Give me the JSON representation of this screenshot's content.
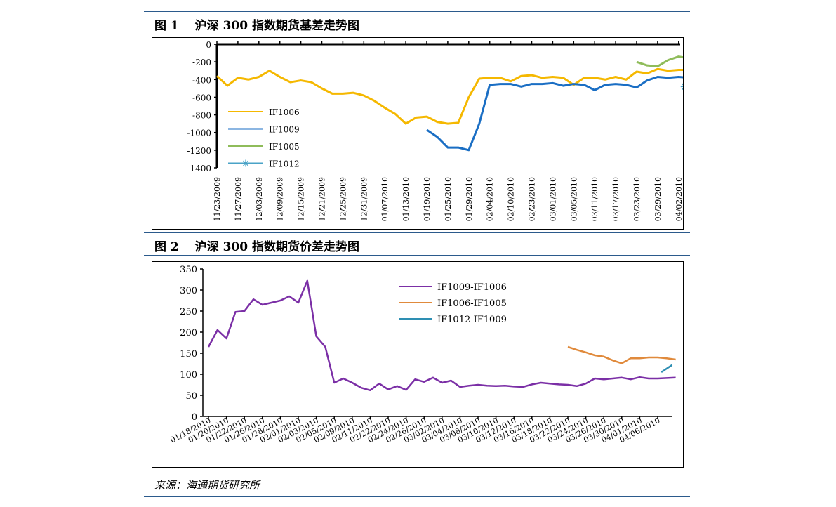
{
  "figure1": {
    "title": "图 1　 沪深 300 指数期货基差走势图"
  },
  "figure2": {
    "title": "图 2　 沪深 300 指数期货价差走势图"
  },
  "source": "来源：海通期货研究所",
  "chart_data": [
    {
      "type": "line",
      "title": "",
      "xlabel": "",
      "ylabel": "",
      "ylim": [
        -1400,
        0
      ],
      "yticks": [
        "0",
        "-200",
        "-400",
        "-600",
        "-800",
        "-1000",
        "-1200",
        "-1400"
      ],
      "x_tick_labels": [
        "11/23/2009",
        "11/27/2009",
        "12/03/2009",
        "12/09/2009",
        "12/15/2009",
        "12/21/2009",
        "12/25/2009",
        "12/31/2009",
        "01/07/2010",
        "01/13/2010",
        "01/19/2010",
        "01/25/2010",
        "01/29/2010",
        "02/04/2010",
        "02/10/2010",
        "02/23/2010",
        "03/01/2010",
        "03/05/2010",
        "03/11/2010",
        "03/17/2010",
        "03/23/2010",
        "03/29/2010",
        "04/02/2010"
      ],
      "grid": false,
      "legend_position": "bottom-left",
      "series": [
        {
          "name": "IF1006",
          "color": "#f5b800",
          "marker": "none",
          "x": [
            0,
            0.5,
            1,
            1.5,
            2,
            2.5,
            3,
            3.5,
            4,
            4.5,
            5,
            5.5,
            6,
            6.5,
            7,
            7.5,
            8,
            8.5,
            9,
            9.5,
            10,
            10.5,
            11,
            11.5,
            12,
            12.5,
            13,
            13.5,
            14,
            14.5,
            15,
            15.5,
            16,
            16.5,
            17,
            17.5,
            18,
            18.5,
            19,
            19.5,
            20,
            20.5,
            21,
            21.5,
            22,
            22.5
          ],
          "values": [
            -360,
            -470,
            -380,
            -400,
            -370,
            -300,
            -370,
            -430,
            -410,
            -430,
            -500,
            -560,
            -560,
            -550,
            -580,
            -640,
            -720,
            -790,
            -900,
            -830,
            -820,
            -880,
            -900,
            -890,
            -600,
            -390,
            -380,
            -380,
            -420,
            -360,
            -350,
            -380,
            -370,
            -380,
            -460,
            -380,
            -380,
            -400,
            -370,
            -400,
            -310,
            -330,
            -280,
            -300,
            -290,
            -290
          ]
        },
        {
          "name": "IF1009",
          "color": "#1a6ec4",
          "marker": "none",
          "x": [
            10,
            10.5,
            11,
            11.5,
            12,
            12.5,
            13,
            13.5,
            14,
            14.5,
            15,
            15.5,
            16,
            16.5,
            17,
            17.5,
            18,
            18.5,
            19,
            19.5,
            20,
            20.5,
            21,
            21.5,
            22,
            22.5
          ],
          "values": [
            -970,
            -1050,
            -1170,
            -1170,
            -1200,
            -900,
            -460,
            -450,
            -450,
            -480,
            -450,
            -450,
            -440,
            -470,
            -450,
            -460,
            -520,
            -460,
            -450,
            -460,
            -490,
            -410,
            -370,
            -380,
            -370,
            -380
          ]
        },
        {
          "name": "IF1005",
          "color": "#8fbc5a",
          "marker": "none",
          "x": [
            20,
            20.5,
            21,
            21.5,
            22,
            22.5
          ],
          "values": [
            -200,
            -240,
            -250,
            -180,
            -140,
            -160
          ]
        },
        {
          "name": "IF1012",
          "color": "#4aa3c7",
          "marker": "asterisk",
          "x": [
            22.3,
            22.6
          ],
          "values": [
            -480,
            -510
          ]
        }
      ]
    },
    {
      "type": "line",
      "title": "",
      "xlabel": "",
      "ylabel": "",
      "ylim": [
        0,
        350
      ],
      "yticks": [
        "0",
        "50",
        "100",
        "150",
        "200",
        "250",
        "300",
        "350"
      ],
      "x_tick_labels": [
        "01/18/2010",
        "01/20/2010",
        "01/22/2010",
        "01/26/2010",
        "01/28/2010",
        "02/01/2010",
        "02/03/2010",
        "02/05/2010",
        "02/09/2010",
        "02/11/2010",
        "02/22/2010",
        "02/24/2010",
        "02/26/2010",
        "03/02/2010",
        "03/04/2010",
        "03/08/2010",
        "03/10/2010",
        "03/12/2010",
        "03/16/2010",
        "03/18/2010",
        "03/22/2010",
        "03/24/2010",
        "03/26/2010",
        "03/30/2010",
        "04/01/2010",
        "04/06/2010"
      ],
      "grid": false,
      "legend_position": "top-center",
      "series": [
        {
          "name": "IF1009-IF1006",
          "color": "#7b2fa6",
          "x": [
            0,
            0.5,
            1,
            1.5,
            2,
            2.5,
            3,
            3.5,
            4,
            4.5,
            5,
            5.5,
            6,
            6.5,
            7,
            7.5,
            8,
            8.5,
            9,
            9.5,
            10,
            10.5,
            11,
            11.5,
            12,
            12.5,
            13,
            13.5,
            14,
            14.5,
            15,
            15.5,
            16,
            16.5,
            17,
            17.5,
            18,
            18.5,
            19,
            19.5,
            20,
            20.5,
            21,
            21.5,
            22,
            22.5,
            23,
            23.5,
            24,
            24.5,
            25,
            25.5,
            26
          ],
          "values": [
            165,
            205,
            185,
            248,
            250,
            278,
            265,
            270,
            275,
            285,
            270,
            322,
            190,
            165,
            80,
            90,
            80,
            68,
            62,
            78,
            64,
            72,
            63,
            88,
            82,
            92,
            80,
            85,
            70,
            73,
            75,
            73,
            72,
            73,
            71,
            70,
            76,
            80,
            78,
            76,
            75,
            72,
            78,
            90,
            88,
            90,
            92,
            88,
            93,
            90,
            90,
            91,
            92
          ]
        },
        {
          "name": "IF1006-IF1005",
          "color": "#e08a3c",
          "x": [
            20,
            20.5,
            21,
            21.5,
            22,
            22.5,
            23,
            23.5,
            24,
            24.5,
            25,
            25.5,
            26
          ],
          "values": [
            165,
            158,
            152,
            145,
            142,
            133,
            126,
            138,
            138,
            140,
            140,
            138,
            135
          ]
        },
        {
          "name": "IF1012-IF1009",
          "color": "#2e8fb3",
          "x": [
            25.2,
            25.8
          ],
          "values": [
            105,
            122
          ]
        }
      ]
    }
  ]
}
